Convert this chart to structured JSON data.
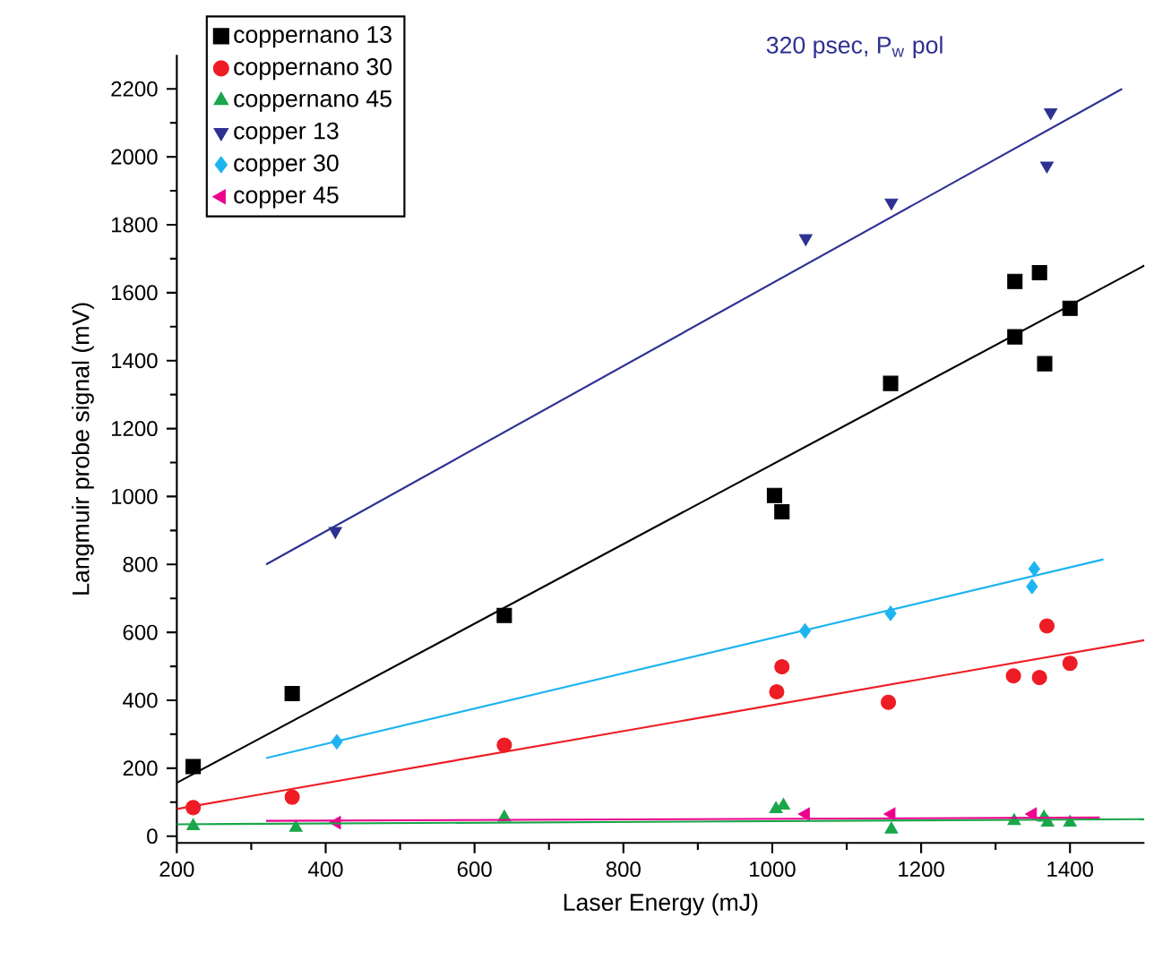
{
  "chart_data": {
    "type": "scatter",
    "xlabel": "Laser Energy (mJ)",
    "ylabel": "Langmuir probe signal (mV)",
    "annotations": [
      "320 psec, P$_{w}$ pol"
    ],
    "xlim": [
      200,
      1500
    ],
    "ylim": [
      -20,
      2300
    ],
    "xticks": [
      200,
      400,
      600,
      800,
      1000,
      1200,
      1400
    ],
    "yticks": [
      0,
      200,
      400,
      600,
      800,
      1000,
      1200,
      1400,
      1600,
      1800,
      2000,
      2200
    ],
    "legend": "top left",
    "series": [
      {
        "name": "coppernano 13",
        "color": "#000000",
        "marker": "square",
        "x": [
          222,
          355,
          640,
          1003,
          1013,
          1159,
          1326,
          1359,
          1326,
          1366,
          1400
        ],
        "values": [
          205,
          420,
          650,
          1003,
          955,
          1333,
          1633,
          1659,
          1470,
          1391,
          1554
        ]
      },
      {
        "name": "coppernano 30",
        "color": "#ee1c24",
        "marker": "circle",
        "x": [
          222,
          355,
          640,
          1006,
          1013,
          1156,
          1324,
          1359,
          1369,
          1400
        ],
        "values": [
          84,
          115,
          268,
          425,
          499,
          394,
          472,
          467,
          619,
          509
        ]
      },
      {
        "name": "coppernano 45",
        "color": "#1aa64a",
        "marker": "triangle",
        "x": [
          222,
          360,
          640,
          1005,
          1015,
          1160,
          1325,
          1365,
          1370,
          1400
        ],
        "values": [
          30,
          25,
          55,
          80,
          90,
          20,
          45,
          55,
          40,
          40
        ]
      },
      {
        "name": "copper 13",
        "color": "#2e3192",
        "marker": "triangle-down",
        "x": [
          413,
          1045,
          1160,
          1374,
          1369
        ],
        "values": [
          898,
          1760,
          1865,
          2131,
          1974
        ]
      },
      {
        "name": "copper 30",
        "color": "#1eb4f0",
        "marker": "diamond",
        "x": [
          415,
          1044,
          1159,
          1352,
          1349
        ],
        "values": [
          278,
          604,
          656,
          787,
          735
        ]
      },
      {
        "name": "copper 45",
        "color": "#ec008c",
        "marker": "triangle-left",
        "x": [
          415,
          1045,
          1160,
          1350
        ],
        "values": [
          40,
          65,
          65,
          65
        ]
      },
      {
        "type": "line",
        "color": "#000000",
        "x": [
          200,
          1500
        ],
        "values": [
          157,
          1680
        ]
      },
      {
        "type": "line",
        "color": "#ee1c24",
        "x": [
          200,
          1500
        ],
        "values": [
          80,
          577
        ]
      },
      {
        "type": "line",
        "color": "#1aa64a",
        "x": [
          200,
          1500
        ],
        "values": [
          35,
          50
        ]
      },
      {
        "type": "line",
        "color": "#2e3192",
        "x": [
          320,
          1470
        ],
        "values": [
          800,
          2200
        ]
      },
      {
        "type": "line",
        "color": "#1eb4f0",
        "x": [
          320,
          1445
        ],
        "values": [
          230,
          815
        ]
      },
      {
        "type": "line",
        "color": "#ec008c",
        "x": [
          320,
          1440
        ],
        "values": [
          45,
          55
        ]
      }
    ]
  }
}
